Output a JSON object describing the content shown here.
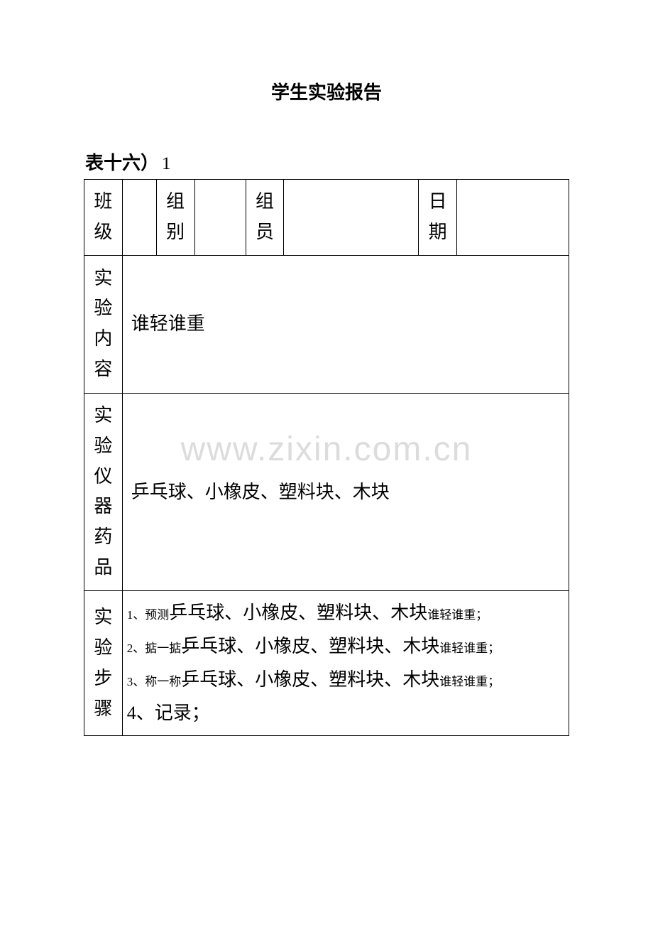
{
  "title": "学生实验报告",
  "table_label": "表十六）",
  "table_label_suffix": "1",
  "row1": {
    "h1": "班级",
    "v1": "",
    "h2": "组别",
    "v2": "",
    "h3": "组员",
    "v3": "",
    "h4": "日期",
    "v4": ""
  },
  "row2": {
    "label": "实验内容",
    "content": "谁轻谁重"
  },
  "row3": {
    "label": "实验仪器药品",
    "content": "乒乓球、小橡皮、塑料块、木块"
  },
  "row4": {
    "label": "实验步骤",
    "step1_pre": "1、预测",
    "step1_mid": "乒乓球、小橡皮、塑料块、木块",
    "step1_post": "谁轻谁重；",
    "step2_pre": "2、掂一掂",
    "step2_mid": "乒乓球、小橡皮、塑料块、木块",
    "step2_post": "谁轻谁重；",
    "step3_pre": "3、称一称",
    "step3_mid": "乒乓球、小橡皮、塑料块、木块",
    "step3_post": "谁轻谁重；",
    "step4": "4、记录；"
  },
  "watermark": "www.zixin.com.cn",
  "colors": {
    "background": "#ffffff",
    "border": "#000000",
    "text": "#000000",
    "watermark": "#dcdcdc"
  }
}
